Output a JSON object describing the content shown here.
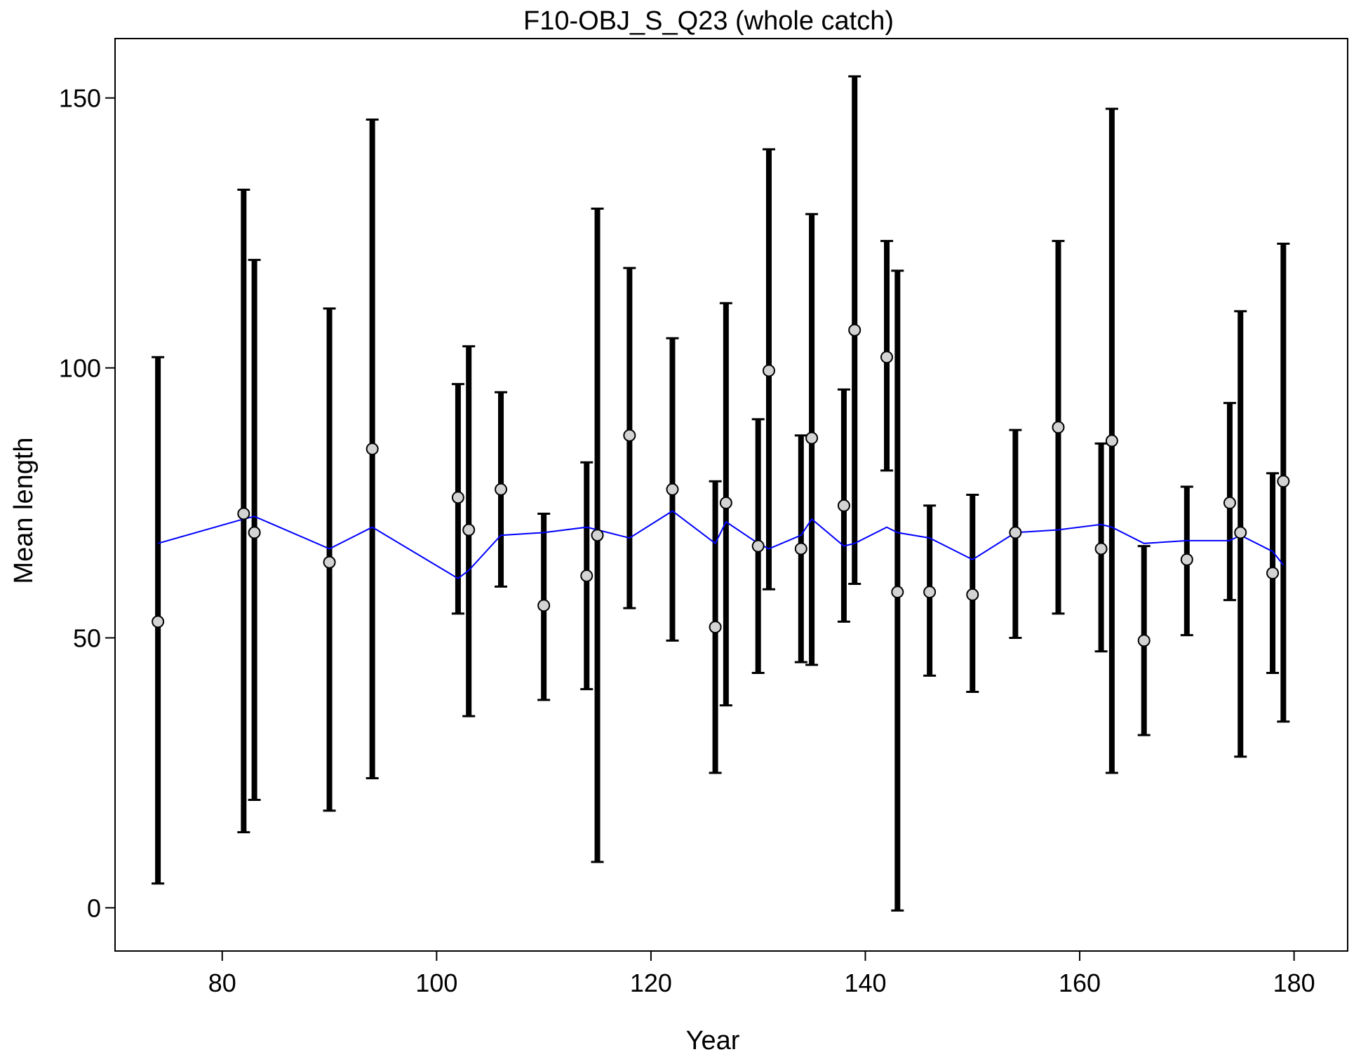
{
  "chart_data": {
    "type": "scatter",
    "title": "F10-OBJ_S_Q23 (whole catch)",
    "xlabel": "Year",
    "ylabel": "Mean length",
    "xlim": [
      70,
      185
    ],
    "ylim": [
      -8,
      161
    ],
    "x_ticks": [
      80,
      100,
      120,
      140,
      160,
      180
    ],
    "y_ticks": [
      0,
      50,
      100,
      150
    ],
    "grid": false,
    "legend": "none",
    "colors": {
      "observed_fill": "#d3d3d3",
      "error_bar": "#000000",
      "expected_line": "#0000ff"
    },
    "series": [
      {
        "kind": "observed_with_interval",
        "points": [
          {
            "x": 74,
            "y": 53,
            "lo": 4.5,
            "hi": 102
          },
          {
            "x": 82,
            "y": 73,
            "lo": 14,
            "hi": 133
          },
          {
            "x": 83,
            "y": 69.5,
            "lo": 20,
            "hi": 120
          },
          {
            "x": 90,
            "y": 64,
            "lo": 18,
            "hi": 111
          },
          {
            "x": 94,
            "y": 85,
            "lo": 24,
            "hi": 146
          },
          {
            "x": 102,
            "y": 76,
            "lo": 54.5,
            "hi": 97
          },
          {
            "x": 103,
            "y": 70,
            "lo": 35.5,
            "hi": 104
          },
          {
            "x": 106,
            "y": 77.5,
            "lo": 59.5,
            "hi": 95.5
          },
          {
            "x": 110,
            "y": 56,
            "lo": 38.5,
            "hi": 73
          },
          {
            "x": 114,
            "y": 61.5,
            "lo": 40.5,
            "hi": 82.5
          },
          {
            "x": 115,
            "y": 69,
            "lo": 8.5,
            "hi": 129.5
          },
          {
            "x": 118,
            "y": 87.5,
            "lo": 55.5,
            "hi": 118.5
          },
          {
            "x": 122,
            "y": 77.5,
            "lo": 49.5,
            "hi": 105.5
          },
          {
            "x": 126,
            "y": 52,
            "lo": 25,
            "hi": 79
          },
          {
            "x": 127,
            "y": 75,
            "lo": 37.5,
            "hi": 112
          },
          {
            "x": 130,
            "y": 67,
            "lo": 43.5,
            "hi": 90.5
          },
          {
            "x": 131,
            "y": 99.5,
            "lo": 59,
            "hi": 140.5
          },
          {
            "x": 134,
            "y": 66.5,
            "lo": 45.5,
            "hi": 87.5
          },
          {
            "x": 135,
            "y": 87,
            "lo": 45,
            "hi": 128.5
          },
          {
            "x": 138,
            "y": 74.5,
            "lo": 53,
            "hi": 96
          },
          {
            "x": 139,
            "y": 107,
            "lo": 60,
            "hi": 154
          },
          {
            "x": 142,
            "y": 102,
            "lo": 81,
            "hi": 123.5
          },
          {
            "x": 143,
            "y": 58.5,
            "lo": -0.5,
            "hi": 118
          },
          {
            "x": 146,
            "y": 58.5,
            "lo": 43,
            "hi": 74.5
          },
          {
            "x": 150,
            "y": 58,
            "lo": 40,
            "hi": 76.5
          },
          {
            "x": 154,
            "y": 69.5,
            "lo": 50,
            "hi": 88.5
          },
          {
            "x": 158,
            "y": 89,
            "lo": 54.5,
            "hi": 123.5
          },
          {
            "x": 162,
            "y": 66.5,
            "lo": 47.5,
            "hi": 86
          },
          {
            "x": 163,
            "y": 86.5,
            "lo": 25,
            "hi": 148
          },
          {
            "x": 166,
            "y": 49.5,
            "lo": 32,
            "hi": 67
          },
          {
            "x": 170,
            "y": 64.5,
            "lo": 50.5,
            "hi": 78
          },
          {
            "x": 174,
            "y": 75,
            "lo": 57,
            "hi": 93.5
          },
          {
            "x": 175,
            "y": 69.5,
            "lo": 28,
            "hi": 110.5
          },
          {
            "x": 178,
            "y": 62,
            "lo": 43.5,
            "hi": 80.5
          },
          {
            "x": 179,
            "y": 79,
            "lo": 34.5,
            "hi": 123
          }
        ]
      },
      {
        "kind": "expected_line",
        "points": [
          {
            "x": 74,
            "y": 67.5
          },
          {
            "x": 82,
            "y": 72
          },
          {
            "x": 83,
            "y": 72.5
          },
          {
            "x": 90,
            "y": 66.5
          },
          {
            "x": 94,
            "y": 70.5
          },
          {
            "x": 102,
            "y": 61
          },
          {
            "x": 103,
            "y": 62.5
          },
          {
            "x": 106,
            "y": 69
          },
          {
            "x": 110,
            "y": 69.5
          },
          {
            "x": 114,
            "y": 70.5
          },
          {
            "x": 115,
            "y": 70
          },
          {
            "x": 118,
            "y": 68.5
          },
          {
            "x": 122,
            "y": 73.5
          },
          {
            "x": 126,
            "y": 67.5
          },
          {
            "x": 127,
            "y": 71.5
          },
          {
            "x": 130,
            "y": 67.5
          },
          {
            "x": 131,
            "y": 66.5
          },
          {
            "x": 134,
            "y": 69
          },
          {
            "x": 135,
            "y": 72
          },
          {
            "x": 138,
            "y": 67
          },
          {
            "x": 139,
            "y": 67.5
          },
          {
            "x": 142,
            "y": 70.5
          },
          {
            "x": 143,
            "y": 69.5
          },
          {
            "x": 146,
            "y": 68.5
          },
          {
            "x": 150,
            "y": 64.5
          },
          {
            "x": 154,
            "y": 69.5
          },
          {
            "x": 158,
            "y": 70
          },
          {
            "x": 162,
            "y": 71
          },
          {
            "x": 163,
            "y": 70.5
          },
          {
            "x": 166,
            "y": 67.5
          },
          {
            "x": 170,
            "y": 68
          },
          {
            "x": 174,
            "y": 68
          },
          {
            "x": 175,
            "y": 69
          },
          {
            "x": 178,
            "y": 66
          },
          {
            "x": 179,
            "y": 63.5
          }
        ]
      }
    ]
  }
}
